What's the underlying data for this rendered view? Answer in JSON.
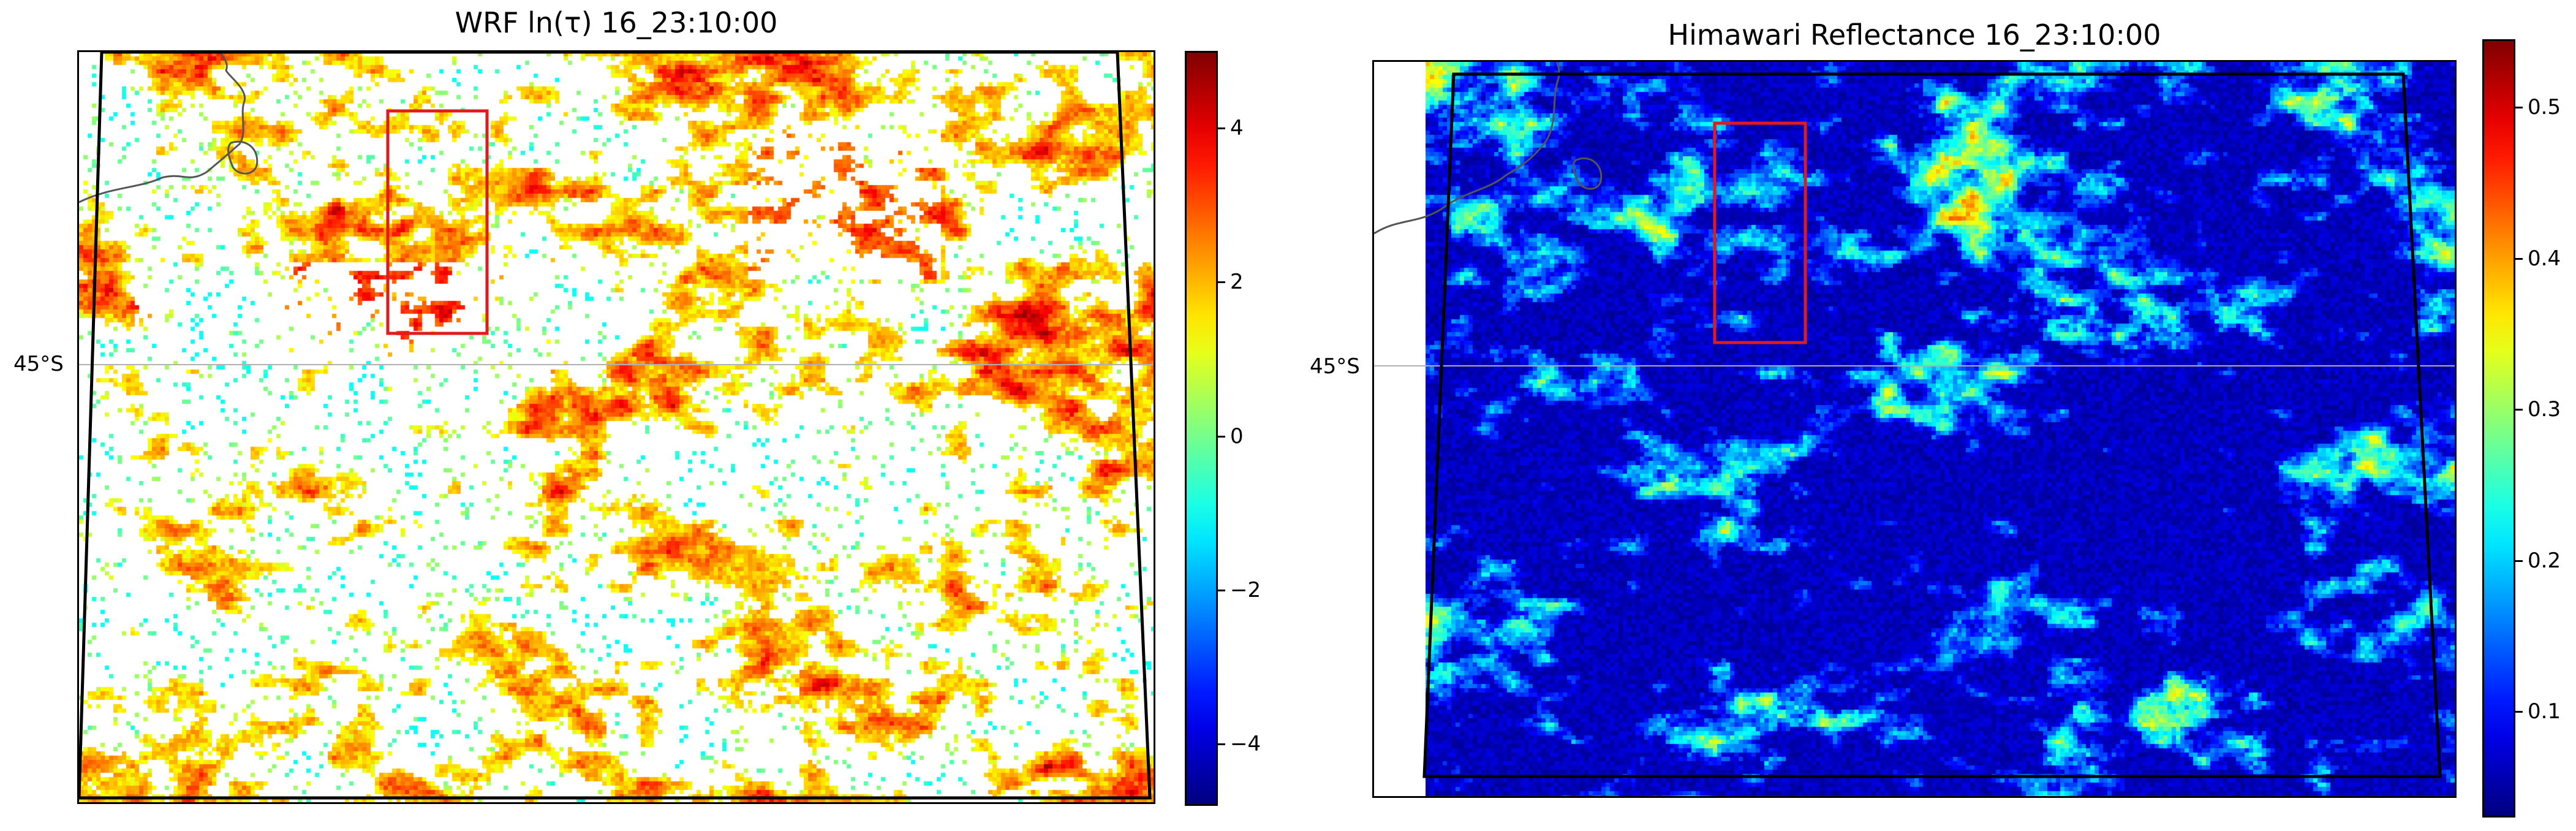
{
  "chart_data": [
    {
      "type": "heatmap",
      "title": "WRF ln(τ) 16_23:10:00",
      "lat_label": "45°S",
      "colormap": "jet",
      "colorbar": {
        "range": [
          -4.8,
          5.0
        ],
        "ticks": [
          4,
          2,
          0,
          -2,
          -4
        ],
        "tick_labels": [
          "4",
          "2",
          "0",
          "−2",
          "−4"
        ]
      },
      "field_description": "optical depth with clear (white) gaps",
      "red_box_color": "#e31a1c",
      "domain_outline_color": "#000000"
    },
    {
      "type": "heatmap",
      "title": "Himawari Reflectance 16_23:10:00",
      "lat_label": "45°S",
      "colormap": "jet",
      "colorbar": {
        "range": [
          0.03,
          0.545
        ],
        "ticks": [
          0.5,
          0.4,
          0.3,
          0.2,
          0.1
        ],
        "tick_labels": [
          "0.5",
          "0.4",
          "0.3",
          "0.2",
          "0.1"
        ]
      },
      "field_description": "reflectance, dark-blue clear sky",
      "red_box_color": "#e31a1c",
      "domain_outline_color": "#000000"
    }
  ]
}
